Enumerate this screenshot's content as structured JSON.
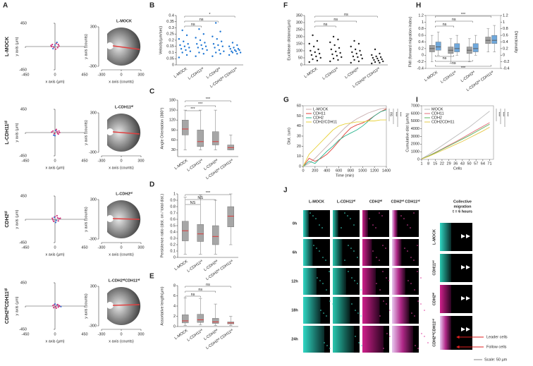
{
  "panel_labels": [
    "A",
    "B",
    "C",
    "D",
    "E",
    "F",
    "G",
    "H",
    "I",
    "J"
  ],
  "panel_a": {
    "row_labels": [
      "L-MOCK",
      "L-CDH11ᴴⁱ",
      "CDH2ᴴⁱ",
      "CDH2ᴴⁱCDH11ᴴⁱ"
    ],
    "scatter": {
      "xticks": [
        -450,
        0,
        450
      ],
      "yticks": [
        450,
        -450
      ],
      "xlabel": "x axis (µm)",
      "ylabel": "y axis (µm)",
      "points": [
        {
          "x": [
            -60,
            -40,
            -20,
            0,
            20,
            40,
            60,
            -30,
            10,
            50,
            -50,
            30
          ],
          "y": [
            20,
            40,
            -10,
            30,
            60,
            -20,
            10,
            -40,
            -50,
            40,
            0,
            80
          ]
        },
        {
          "x": [
            -50,
            -30,
            -10,
            10,
            30,
            50,
            70,
            -20,
            20,
            40,
            60,
            0
          ],
          "y": [
            10,
            30,
            -20,
            40,
            20,
            -30,
            0,
            -50,
            60,
            -10,
            30,
            -60
          ]
        },
        {
          "x": [
            -40,
            -20,
            0,
            20,
            40,
            60,
            -30,
            10,
            30,
            50,
            80,
            -10
          ],
          "y": [
            20,
            -40,
            50,
            -20,
            30,
            10,
            -10,
            -60,
            70,
            -30,
            20,
            40
          ]
        },
        {
          "x": [
            -30,
            -10,
            10,
            30,
            50,
            70,
            -20,
            0,
            20,
            40,
            60,
            90
          ],
          "y": [
            10,
            30,
            -10,
            20,
            -20,
            0,
            -30,
            40,
            -40,
            30,
            10,
            -10
          ]
        }
      ]
    },
    "rose": {
      "titles": [
        "L-MOCK",
        "L-CDH11ᴴⁱ",
        "L-CDH2ᴴⁱ",
        "L-CDH2ᴴⁱCDH11ᴴⁱ"
      ],
      "xticks": [
        -300,
        0,
        300
      ],
      "yticks": [
        300,
        -300
      ],
      "xlabel": "x axis (counts)",
      "ylabel": "y axis (counts)"
    }
  },
  "chart_data": [
    {
      "type": "strip",
      "ylabel": "Velocity(µm/sec)",
      "color": "#1f77d4",
      "categories": [
        "L-MOCK",
        "L-CDH11ᴴⁱ",
        "L-CDH2ᴴⁱ",
        "L-CDH2ᴴⁱ CDH11ᴴⁱ"
      ],
      "values": [
        [
          0.06,
          0.08,
          0.1,
          0.11,
          0.12,
          0.13,
          0.14,
          0.15,
          0.16,
          0.17,
          0.19,
          0.21,
          0.24,
          0.28
        ],
        [
          0.07,
          0.09,
          0.1,
          0.12,
          0.13,
          0.14,
          0.15,
          0.16,
          0.17,
          0.18,
          0.2,
          0.22,
          0.25,
          0.29
        ],
        [
          0.07,
          0.09,
          0.1,
          0.11,
          0.12,
          0.14,
          0.15,
          0.16,
          0.17,
          0.19,
          0.21,
          0.23,
          0.27,
          0.34
        ],
        [
          0.08,
          0.09,
          0.1,
          0.1,
          0.11,
          0.11,
          0.12,
          0.12,
          0.13,
          0.13,
          0.14,
          0.15,
          0.16,
          0.18
        ]
      ],
      "ylim": [
        0,
        0.4
      ],
      "yticks": [
        0,
        0.05,
        0.1,
        0.15,
        0.2,
        0.25,
        0.3,
        0.35,
        0.4
      ],
      "brackets": [
        {
          "label": "ns",
          "between": [
            "L-MOCK",
            "L-CDH11ᴴⁱ"
          ]
        },
        {
          "label": "ns",
          "between": [
            "L-MOCK",
            "L-CDH2ᴴⁱ"
          ]
        },
        {
          "label": "*",
          "between": [
            "L-MOCK",
            "L-CDH2ᴴⁱ CDH11ᴴⁱ"
          ]
        }
      ]
    },
    {
      "type": "box",
      "ylabel": "Angle Orientation (360°)",
      "color": "#a6a6a6",
      "median_color": "#e03030",
      "categories": [
        "L-MOCK",
        "L-CDH11ᴴⁱ",
        "L-CDH2ᴴⁱ",
        "L-CDH2ᴴⁱ CDH11ᴴⁱ"
      ],
      "boxes": [
        {
          "whislo": 30,
          "q1": 75,
          "med": 93,
          "q3": 120,
          "whishi": 150
        },
        {
          "whislo": 30,
          "q1": 40,
          "med": 55,
          "q3": 90,
          "whishi": 150
        },
        {
          "whislo": 30,
          "q1": 45,
          "med": 55,
          "q3": 85,
          "whishi": 150
        },
        {
          "whislo": 30,
          "q1": 30,
          "med": 37,
          "q3": 45,
          "whishi": 75
        }
      ],
      "ylim": [
        10,
        180
      ],
      "yticks": [
        30,
        60,
        90,
        120,
        150,
        180
      ],
      "brackets": [
        {
          "label": "***",
          "between": [
            "L-MOCK",
            "L-CDH11ᴴⁱ"
          ]
        },
        {
          "label": "***",
          "between": [
            "L-MOCK",
            "L-CDH2ᴴⁱ"
          ]
        },
        {
          "label": "***",
          "between": [
            "L-MOCK",
            "L-CDH2ᴴⁱ CDH11ᴴⁱ"
          ]
        }
      ]
    },
    {
      "type": "box",
      "ylabel": "Persistence ratio (dist. on / total dist.)",
      "color": "#a6a6a6",
      "median_color": "#e03030",
      "categories": [
        "L-MOCK",
        "L-CDH11ᴴⁱ",
        "L-CDH2ᴴⁱ",
        "L-CDH2ᴴⁱ CDH11ᴴⁱ"
      ],
      "boxes": [
        {
          "whislo": 0.05,
          "q1": 0.26,
          "med": 0.42,
          "q3": 0.57,
          "whishi": 0.95
        },
        {
          "whislo": 0.05,
          "q1": 0.25,
          "med": 0.37,
          "q3": 0.52,
          "whishi": 0.98
        },
        {
          "whislo": 0.05,
          "q1": 0.2,
          "med": 0.33,
          "q3": 0.5,
          "whishi": 0.9
        },
        {
          "whislo": 0.2,
          "q1": 0.48,
          "med": 0.65,
          "q3": 0.8,
          "whishi": 1
        }
      ],
      "ylim": [
        0,
        1
      ],
      "yticks": [
        0,
        0.1,
        0.2,
        0.3,
        0.4,
        0.5,
        0.6,
        0.7,
        0.8,
        0.9,
        1
      ],
      "brackets": [
        {
          "label": "NS",
          "between": [
            "L-MOCK",
            "L-CDH11ᴴⁱ"
          ]
        },
        {
          "label": "NS",
          "between": [
            "L-MOCK",
            "L-CDH2ᴴⁱ"
          ]
        },
        {
          "label": "***",
          "between": [
            "L-MOCK",
            "L-CDH2ᴴⁱ CDH11ᴴⁱ"
          ]
        }
      ]
    },
    {
      "type": "box",
      "ylabel": "Assortative length(µm)",
      "color": "#a6a6a6",
      "median_color": "#e03030",
      "categories": [
        "L-MOCK",
        "L-CDH11ᴴⁱ",
        "L-CDH2ᴴⁱ",
        "L-CDH2ᴴⁱ CDH11ᴴⁱ"
      ],
      "boxes": [
        {
          "whislo": 0.2,
          "q1": 0.7,
          "med": 1.1,
          "q3": 2.3,
          "whishi": 5.6
        },
        {
          "whislo": 0.3,
          "q1": 0.8,
          "med": 1.3,
          "q3": 2.4,
          "whishi": 5.5
        },
        {
          "whislo": 0.2,
          "q1": 0.6,
          "med": 0.9,
          "q3": 1.6,
          "whishi": 4.4
        },
        {
          "whislo": 0.2,
          "q1": 0.5,
          "med": 0.7,
          "q3": 0.9,
          "whishi": 2
        }
      ],
      "ylim": [
        0,
        8
      ],
      "yticks": [
        0,
        2,
        4,
        6,
        8
      ],
      "brackets": [
        {
          "label": "ns",
          "between": [
            "L-MOCK",
            "L-CDH11ᴴⁱ"
          ]
        },
        {
          "label": "ns",
          "between": [
            "L-MOCK",
            "L-CDH2ᴴⁱ"
          ]
        },
        {
          "label": "ns",
          "between": [
            "L-MOCK",
            "L-CDH2ᴴⁱ CDH11ᴴⁱ"
          ]
        }
      ]
    },
    {
      "type": "strip",
      "ylabel": "Euclidean distance(µm)",
      "color": "#222222",
      "categories": [
        "L-MOCK",
        "L-CDH11ᴴⁱ",
        "L-CDH2ᴴⁱ",
        "L-CDH2ᴴⁱ CDH11ᴴⁱ"
      ],
      "values": [
        [
          20,
          30,
          40,
          50,
          60,
          70,
          80,
          90,
          100,
          110,
          130,
          150,
          170,
          210
        ],
        [
          25,
          35,
          45,
          55,
          65,
          75,
          85,
          95,
          110,
          120,
          140,
          160,
          180,
          200
        ],
        [
          15,
          25,
          35,
          45,
          55,
          60,
          70,
          80,
          90,
          100,
          110,
          130,
          150,
          170
        ],
        [
          10,
          15,
          20,
          25,
          30,
          35,
          40,
          45,
          50,
          55,
          60,
          70,
          80,
          110
        ]
      ],
      "ylim": [
        0,
        350
      ],
      "yticks": [
        0,
        50,
        100,
        150,
        200,
        250,
        300,
        350
      ],
      "brackets": [
        {
          "label": "ns",
          "between": [
            "L-MOCK",
            "L-CDH11ᴴⁱ"
          ]
        },
        {
          "label": "ns",
          "between": [
            "L-MOCK",
            "L-CDH2ᴴⁱ"
          ]
        },
        {
          "label": "ns",
          "between": [
            "L-MOCK",
            "L-CDH2ᴴⁱ CDH11ᴴⁱ"
          ]
        }
      ]
    },
    {
      "type": "line",
      "xlabel": "Time (min)",
      "ylabel": "Dist. (um)",
      "x": [
        0,
        100,
        200,
        300,
        400,
        500,
        600,
        700,
        800,
        900,
        1000,
        1100,
        1200,
        1300,
        1400
      ],
      "series": [
        {
          "name": "L-MOCK",
          "color": "#c9b0b0",
          "values": [
            0,
            3,
            8,
            14,
            20,
            26,
            32,
            38,
            43,
            47,
            50,
            53,
            55,
            57,
            58
          ]
        },
        {
          "name": "CDH11",
          "color": "#e0403a",
          "values": [
            0,
            8,
            5,
            8,
            12,
            18,
            25,
            32,
            38,
            41,
            43,
            46,
            50,
            54,
            57
          ]
        },
        {
          "name": "CDH2",
          "color": "#2bb58f",
          "values": [
            0,
            5,
            3,
            9,
            15,
            20,
            26,
            30,
            33,
            36,
            40,
            45,
            50,
            54,
            56
          ]
        },
        {
          "name": "CDH2/CDH11",
          "color": "#e8d23c",
          "values": [
            0,
            12,
            18,
            24,
            30,
            36,
            40,
            42,
            43,
            44,
            44,
            45,
            45,
            46,
            46
          ]
        }
      ],
      "xlim": [
        0,
        1400
      ],
      "xticks": [
        0,
        200,
        400,
        600,
        800,
        1000,
        1200,
        1400
      ],
      "ylim": [
        0,
        60
      ],
      "yticks": [
        0,
        10,
        20,
        30,
        40,
        50,
        60
      ],
      "annotations": [
        "ns",
        "***",
        "***"
      ]
    },
    {
      "type": "box",
      "ylabel": "FMI (forward migration index)",
      "y2label": "Directionality",
      "median_color": "#555555",
      "categories": [
        "L-MOCK",
        "L-CDH11ᴴⁱ",
        "L-CDH2ᴴⁱ",
        "L-CDH2ᴴⁱ CDH11ᴴⁱ"
      ],
      "series": [
        {
          "color": "#a0a0a0",
          "boxes": [
            {
              "whislo": -0.2,
              "q1": 0.1,
              "med": 0.2,
              "q3": 0.3,
              "whishi": 0.6
            },
            {
              "whislo": -0.25,
              "q1": 0.05,
              "med": 0.15,
              "q3": 0.25,
              "whishi": 0.5
            },
            {
              "whislo": -0.2,
              "q1": 0.05,
              "med": 0.15,
              "q3": 0.25,
              "whishi": 0.5
            },
            {
              "whislo": 0.1,
              "q1": 0.35,
              "med": 0.45,
              "q3": 0.55,
              "whishi": 0.8
            }
          ]
        },
        {
          "color": "#6fa8dc",
          "axis": "y2",
          "boxes": [
            {
              "whislo": 0,
              "q1": 0.15,
              "med": 0.25,
              "q3": 0.4,
              "whishi": 0.7
            },
            {
              "whislo": 0,
              "q1": 0.1,
              "med": 0.2,
              "q3": 0.35,
              "whishi": 0.6
            },
            {
              "whislo": 0,
              "q1": 0.1,
              "med": 0.2,
              "q3": 0.35,
              "whishi": 0.6
            },
            {
              "whislo": 0.1,
              "q1": 0.35,
              "med": 0.45,
              "q3": 0.6,
              "whishi": 0.9
            }
          ]
        }
      ],
      "ylim": [
        -0.4,
        1.2
      ],
      "yticks": [
        -0.4,
        -0.2,
        0,
        0.2,
        0.4,
        0.6,
        0.8,
        1,
        1.2
      ],
      "y2lim": [
        -0.4,
        1.2
      ],
      "y2ticks": [
        -0.4,
        -0.2,
        0,
        0.2,
        0.4,
        0.6,
        0.8,
        1,
        1.2
      ],
      "brackets": [
        {
          "label": "ns",
          "between": [
            "L-MOCK",
            "L-CDH11ᴴⁱ"
          ]
        },
        {
          "label": "ns",
          "between": [
            "L-MOCK",
            "L-CDH2ᴴⁱ"
          ]
        },
        {
          "label": "***",
          "between": [
            "L-MOCK",
            "L-CDH2ᴴⁱ CDH11ᴴⁱ"
          ]
        }
      ],
      "lower_brackets": [
        {
          "label": "ns",
          "between": [
            "L-MOCK",
            "L-CDH11ᴴⁱ"
          ]
        },
        {
          "label": "ns",
          "between": [
            "L-MOCK",
            "L-CDH2ᴴⁱ"
          ]
        },
        {
          "label": "***",
          "between": [
            "L-MOCK",
            "L-CDH2ᴴⁱ CDH11ᴴⁱ"
          ]
        }
      ]
    },
    {
      "type": "line",
      "xlabel": "Cells",
      "ylabel": "Cumulative dist (µm/h)",
      "x": [
        1,
        8,
        15,
        22,
        29,
        36,
        43,
        50,
        57,
        64,
        71
      ],
      "series": [
        {
          "name": "MOCK",
          "color": "#bbbbbb",
          "values": [
            80,
            600,
            1200,
            1800,
            2400,
            3000,
            3600,
            4200,
            4900,
            5600,
            6300
          ]
        },
        {
          "name": "CDH11",
          "color": "#e0707a",
          "values": [
            60,
            450,
            900,
            1350,
            1850,
            2300,
            2800,
            3300,
            3800,
            4300,
            4800
          ]
        },
        {
          "name": "CDH2",
          "color": "#59b35c",
          "values": [
            60,
            430,
            860,
            1300,
            1750,
            2200,
            2650,
            3100,
            3600,
            4100,
            4600
          ]
        },
        {
          "name": "CDH2CDH11",
          "color": "#e6c84a",
          "values": [
            50,
            380,
            760,
            1150,
            1550,
            1950,
            2350,
            2800,
            3250,
            3700,
            4200
          ]
        }
      ],
      "xlim": [
        1,
        75
      ],
      "xticks": [
        1,
        8,
        15,
        22,
        29,
        36,
        43,
        50,
        57,
        64,
        71
      ],
      "ylim": [
        0,
        7000
      ],
      "yticks": [
        0,
        1000,
        2000,
        3000,
        4000,
        5000,
        6000,
        7000
      ],
      "annotations": [
        "***",
        "***",
        "***"
      ]
    }
  ],
  "panel_j": {
    "columns": [
      "L-MOCK",
      "L-CDH11ᴴⁱ",
      "CDH2ᴴⁱ",
      "CDH2ᴴⁱ CDH11ᴴⁱ"
    ],
    "rows": [
      "0h",
      "6h",
      "12h",
      "18h",
      "24h"
    ],
    "side_title": [
      "Collective",
      "migration",
      "t = 6 hours"
    ],
    "side_rows": [
      "L-MOCK",
      "CDH11ᴴⁱ",
      "CDH2ᴴⁱ",
      "CDH2ᴴⁱCDH11ᴴⁱ"
    ],
    "annotations": [
      "Leader cells",
      "Follow cells"
    ],
    "scale": "Scale: 50 µm"
  }
}
